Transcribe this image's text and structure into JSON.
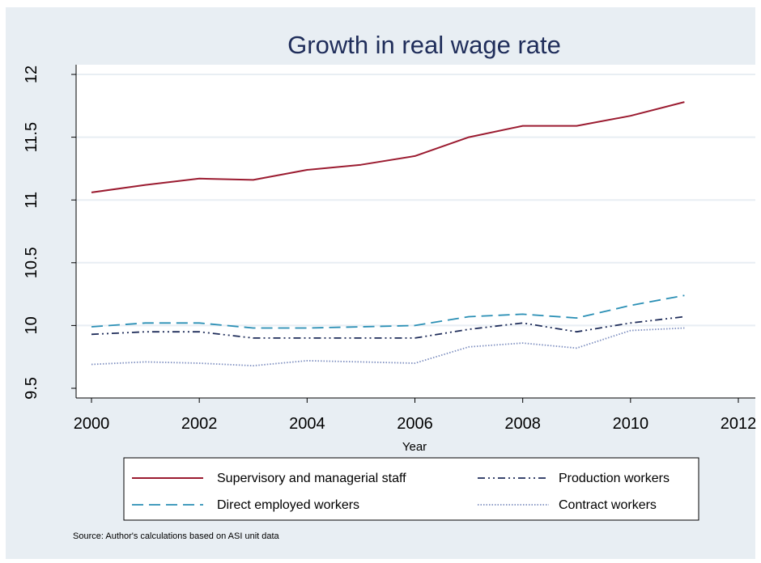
{
  "chart_data": {
    "type": "line",
    "title": "Growth in real wage rate",
    "xlabel": "Year",
    "ylabel": "",
    "source": "Source: Author's calculations based on ASI unit data",
    "xlim": [
      2000,
      2012
    ],
    "ylim": [
      9.5,
      12
    ],
    "x_ticks": [
      2000,
      2002,
      2004,
      2006,
      2008,
      2010,
      2012
    ],
    "y_ticks": [
      9.5,
      10,
      10.5,
      11,
      11.5,
      12
    ],
    "x_tick_labels": [
      "2000",
      "2002",
      "2004",
      "2006",
      "2008",
      "2010",
      "2012"
    ],
    "y_tick_labels": [
      "9.5",
      "10",
      "10.5",
      "11",
      "11.5",
      "12"
    ],
    "grid": true,
    "legend_position": "bottom",
    "x": [
      2000,
      2001,
      2002,
      2003,
      2004,
      2005,
      2006,
      2007,
      2008,
      2009,
      2010,
      2011
    ],
    "series": [
      {
        "name": "Supervisory and managerial staff",
        "color": "#9b1b30",
        "style": "solid",
        "values": [
          11.06,
          11.12,
          11.17,
          11.16,
          11.24,
          11.28,
          11.35,
          11.5,
          11.59,
          11.59,
          11.67,
          11.78
        ]
      },
      {
        "name": "Production workers",
        "color": "#1f2d5a",
        "style": "dashdot",
        "values": [
          9.93,
          9.95,
          9.95,
          9.9,
          9.9,
          9.9,
          9.9,
          9.97,
          10.02,
          9.95,
          10.02,
          10.07
        ]
      },
      {
        "name": "Direct employed workers",
        "color": "#2a8fb5",
        "style": "dashed",
        "values": [
          9.99,
          10.02,
          10.02,
          9.98,
          9.98,
          9.99,
          10.0,
          10.07,
          10.09,
          10.06,
          10.16,
          10.24
        ]
      },
      {
        "name": "Contract workers",
        "color": "#7e8fc0",
        "style": "dotted",
        "values": [
          9.69,
          9.71,
          9.7,
          9.68,
          9.72,
          9.71,
          9.7,
          9.83,
          9.86,
          9.82,
          9.96,
          9.98
        ]
      }
    ]
  }
}
